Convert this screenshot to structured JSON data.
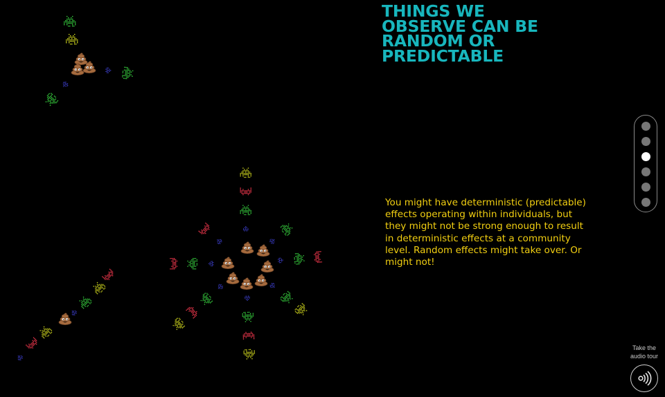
{
  "title": [
    "THINGS WE",
    "OBSERVE CAN BE",
    "RANDOM OR",
    "PREDICTABLE"
  ],
  "body": "You might have deterministic (predictable) effects operating within individuals, but they might not be strong enough to result in deterministic effects at a community level. Random effects might take over. Or might not!",
  "nav": {
    "dots": 6,
    "active_index": 2
  },
  "audio": {
    "label": "Take the audio tour",
    "icon": "speaker-waves-icon"
  },
  "colors": {
    "title": "#18b6bd",
    "body": "#f2cf11",
    "alien_green": "#34c43b",
    "alien_yellow": "#c9cf1d",
    "alien_red": "#e8354a",
    "alien_blue": "#3d3fcc",
    "emoji": "poop-emoji"
  }
}
